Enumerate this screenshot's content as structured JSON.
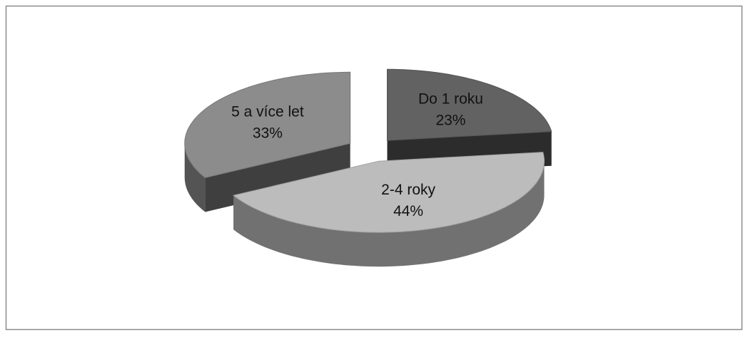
{
  "chart_data": {
    "type": "pie",
    "categories": [
      "Do 1 roku",
      "2-4 roky",
      "5 a více let"
    ],
    "values": [
      23,
      44,
      33
    ],
    "value_labels": [
      "23%",
      "44%",
      "33%"
    ],
    "colors": [
      "#626262",
      "#bcbcbc",
      "#8c8c8c"
    ]
  }
}
